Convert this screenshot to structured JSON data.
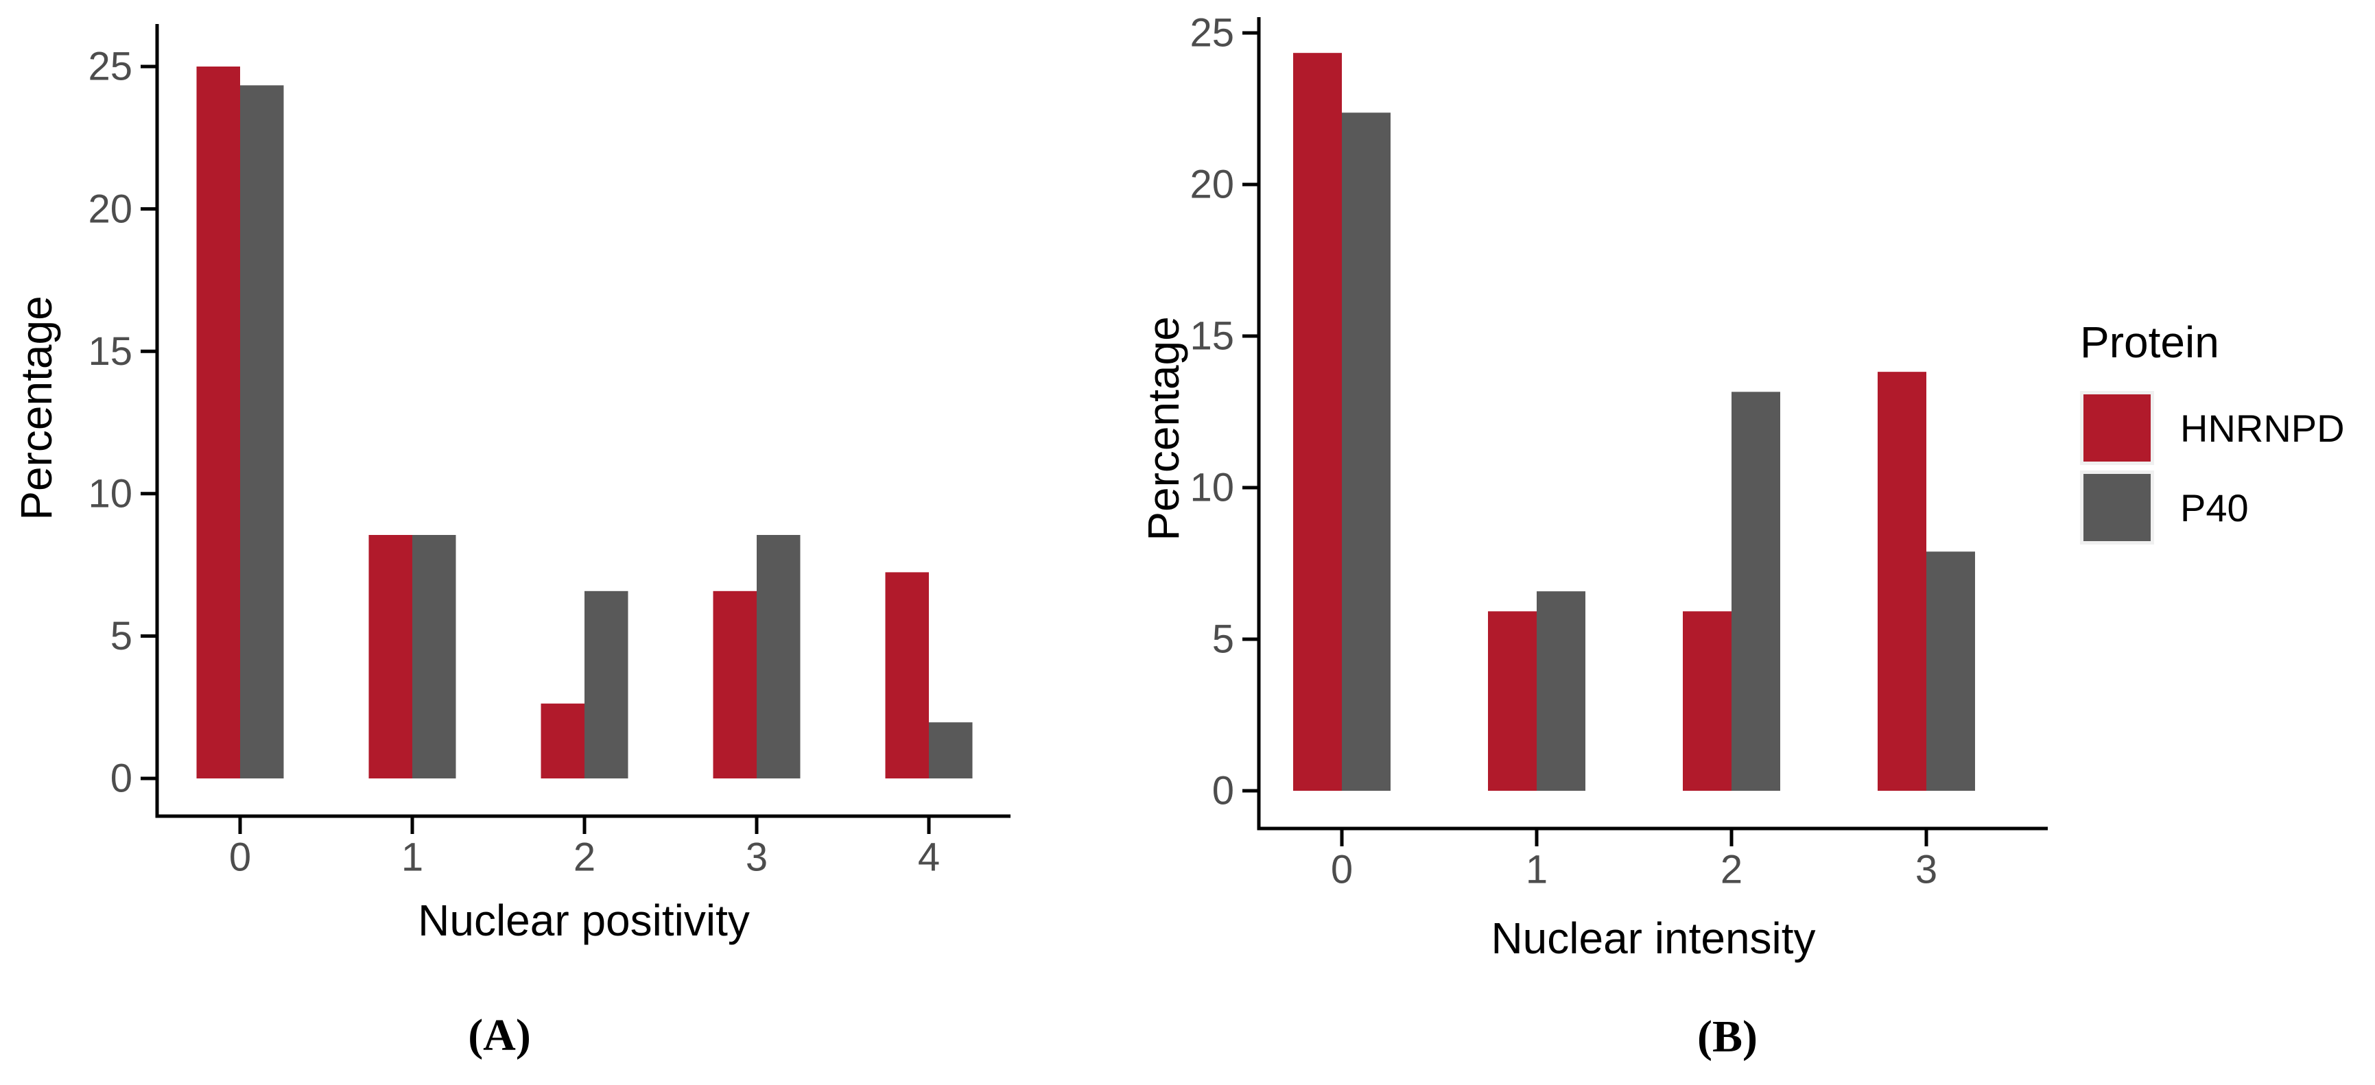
{
  "figure": {
    "background": "#FFFFFF"
  },
  "colors": {
    "hnrnpd": "#B11A2B",
    "p40": "#595959",
    "axis_line": "#000000",
    "tick_label": "#4D4D4D",
    "axis_title": "#000000",
    "legend_key_background": "#F0F0F0"
  },
  "legend": {
    "title": "Protein",
    "items": [
      {
        "label": "HNRNPD",
        "color": "#B11A2B"
      },
      {
        "label": "P40",
        "color": "#595959"
      }
    ]
  },
  "captions": {
    "a": "(A)",
    "b": "(B)"
  },
  "chart_data": [
    {
      "id": "A",
      "type": "bar",
      "title": "",
      "xlabel": "Nuclear positivity",
      "ylabel": "Percentage",
      "categories": [
        "0",
        "1",
        "2",
        "3",
        "4"
      ],
      "series": [
        {
          "name": "HNRNPD",
          "color": "#B11A2B",
          "values": [
            25.0,
            8.55,
            2.63,
            6.58,
            7.24
          ]
        },
        {
          "name": "P40",
          "color": "#595959",
          "values": [
            24.34,
            8.55,
            6.58,
            8.55,
            1.97
          ]
        }
      ],
      "ylim": [
        0,
        25
      ],
      "yticks": [
        0,
        5,
        10,
        15,
        20,
        25
      ],
      "grid": false,
      "legend_position": "right",
      "caption": "(A)"
    },
    {
      "id": "B",
      "type": "bar",
      "title": "",
      "xlabel": "Nuclear intensity",
      "ylabel": "Percentage",
      "categories": [
        "0",
        "1",
        "2",
        "3"
      ],
      "series": [
        {
          "name": "HNRNPD",
          "color": "#B11A2B",
          "values": [
            24.34,
            5.92,
            5.92,
            13.82
          ]
        },
        {
          "name": "P40",
          "color": "#595959",
          "values": [
            22.37,
            6.58,
            13.16,
            7.89
          ]
        }
      ],
      "ylim": [
        0,
        25
      ],
      "yticks": [
        0,
        5,
        10,
        15,
        20,
        25
      ],
      "grid": false,
      "legend_position": "right",
      "caption": "(B)"
    }
  ]
}
